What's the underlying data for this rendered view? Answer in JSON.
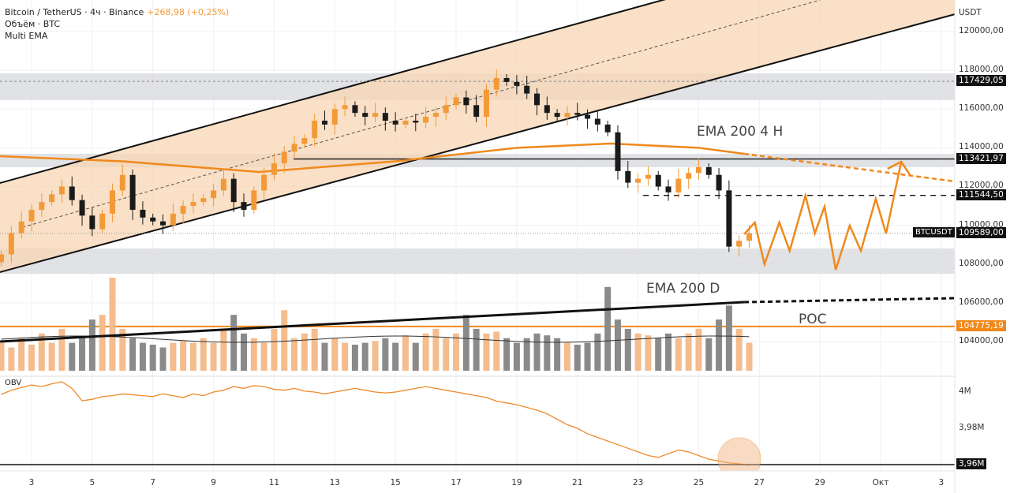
{
  "legend": {
    "symbol": "Bitcoin / TetherUS · 4ч · Binance",
    "change": "+268,98 (+0,25%)",
    "volume": "Объём · BTC",
    "ema": "Multi EMA",
    "obv": "OBV"
  },
  "annotations": {
    "ema4h": "EMA 200 4 H",
    "emaD": "EMA 200 D",
    "poc": "POC"
  },
  "colors": {
    "up": "#f29a38",
    "down": "#1a1a1a",
    "channel": "#f7d5b3",
    "zone": "#dcdde0",
    "poc": "#f0891c"
  },
  "chart_data": {
    "type": "candlestick",
    "price_axis": {
      "unit": "USDT",
      "ticks": [
        "120000,00",
        "118000,00",
        "116000,00",
        "114000,00",
        "112000,00",
        "110000,00",
        "108000,00",
        "106000,00",
        "104000,00"
      ],
      "range": [
        103000,
        121600
      ]
    },
    "time_axis": {
      "ticks": [
        "3",
        "5",
        "7",
        "9",
        "11",
        "13",
        "15",
        "17",
        "19",
        "21",
        "23",
        "25",
        "27",
        "29",
        "Окт",
        "3"
      ]
    },
    "candle_start_day": 2,
    "candles_per_day": 3,
    "closes": [
      108500,
      109600,
      110200,
      110800,
      111200,
      111600,
      112000,
      111300,
      110500,
      109800,
      110600,
      111800,
      112600,
      110800,
      110400,
      110200,
      110000,
      110600,
      111000,
      111200,
      111400,
      111800,
      112400,
      111200,
      110800,
      111800,
      112600,
      113200,
      113800,
      114200,
      114500,
      115400,
      115200,
      116000,
      116200,
      115800,
      115600,
      115800,
      115400,
      115200,
      115400,
      115300,
      115600,
      115800,
      116200,
      116600,
      116200,
      115600,
      117000,
      117600,
      117400,
      117200,
      116800,
      116200,
      115800,
      115600,
      115800,
      115700,
      115500,
      115200,
      114800,
      112800,
      112200,
      112400,
      112600,
      112000,
      111700,
      112400,
      112700,
      113000,
      112600,
      111800,
      108900,
      109200,
      109589
    ],
    "volume": [
      30,
      25,
      35,
      28,
      40,
      30,
      45,
      30,
      35,
      55,
      60,
      100,
      45,
      35,
      30,
      28,
      25,
      30,
      32,
      30,
      35,
      30,
      45,
      60,
      40,
      35,
      30,
      45,
      65,
      35,
      40,
      45,
      30,
      35,
      30,
      28,
      30,
      32,
      35,
      30,
      38,
      30,
      40,
      45,
      35,
      40,
      60,
      45,
      40,
      42,
      35,
      30,
      35,
      40,
      38,
      35,
      30,
      28,
      30,
      40,
      90,
      55,
      45,
      40,
      38,
      35,
      40,
      35,
      40,
      45,
      35,
      55,
      70,
      45,
      30
    ],
    "obv_axis": {
      "ticks": [
        "4M",
        "3,98M"
      ]
    },
    "obv": [
      3.9987,
      4.001,
      4.0025,
      4.0039,
      4.003,
      4.0045,
      4.0057,
      4.002,
      3.9952,
      3.996,
      3.9975,
      3.998,
      3.999,
      3.9985,
      3.998,
      3.9975,
      3.999,
      3.998,
      3.997,
      3.999,
      3.998,
      4.0,
      4.001,
      4.003,
      4.002,
      4.0035,
      4.003,
      4.0015,
      4.001,
      4.002,
      4.0005,
      4.0,
      3.999,
      4.0,
      4.001,
      4.002,
      4.001,
      4.0,
      3.9995,
      4.0,
      4.001,
      4.002,
      4.003,
      4.002,
      4.001,
      4.0,
      3.999,
      3.998,
      3.997,
      3.995,
      3.994,
      3.993,
      3.9915,
      3.99,
      3.988,
      3.985,
      3.982,
      3.98,
      3.977,
      3.975,
      3.973,
      3.971,
      3.969,
      3.967,
      3.965,
      3.964,
      3.966,
      3.968,
      3.967,
      3.965,
      3.963,
      3.962,
      3.961,
      3.9605,
      3.9596
    ],
    "levels": [
      {
        "label": "117429,05",
        "price": 117429.05,
        "style": "dotted"
      },
      {
        "label": "113421,97",
        "price": 113421.97,
        "style": "solid",
        "from_day": 11.64
      },
      {
        "label": "111544,50",
        "price": 111544.5,
        "style": "dashed",
        "from_day": 23.17
      },
      {
        "label": "104775,19",
        "price": 104775.19,
        "style": "poc"
      }
    ],
    "last_price": {
      "ticker": "BTCUSDT",
      "label": "109589,00",
      "price": 109589
    },
    "obv_level": {
      "label": "3,96M",
      "value": 3.96
    },
    "zones": [
      [
        116458,
        117842
      ],
      [
        112997,
        113689
      ],
      [
        107500,
        108803
      ]
    ],
    "channel": {
      "upper": [
        [
          1.96,
          112182
        ],
        [
          23.82,
          121629
        ]
      ],
      "lower": [
        [
          1.96,
          107581
        ],
        [
          33.45,
          120896
        ]
      ],
      "mid": [
        [
          2.7,
          109900
        ],
        [
          29.0,
          121629
        ]
      ]
    },
    "ema_4h": [
      [
        1.96,
        113567
      ],
      [
        6,
        113300
      ],
      [
        10.5,
        112752
      ],
      [
        15,
        113300
      ],
      [
        19,
        114000
      ],
      [
        22.1,
        114218
      ],
      [
        25,
        114000
      ],
      [
        26.5,
        113689
      ]
    ],
    "ema_4h_projection": [
      [
        26.5,
        113689
      ],
      [
        33.45,
        112264
      ]
    ],
    "ema_d": [
      [
        1.96,
        104000
      ],
      [
        26.5,
        106034
      ]
    ],
    "ema_d_projection": [
      [
        26.5,
        106034
      ],
      [
        33.45,
        106238
      ]
    ],
    "projection": [
      [
        26.5,
        109536
      ],
      [
        26.85,
        110147
      ],
      [
        27.17,
        107989
      ],
      [
        27.66,
        110147
      ],
      [
        28.0,
        108681
      ],
      [
        28.52,
        111531
      ],
      [
        28.83,
        109577
      ],
      [
        29.15,
        110961
      ],
      [
        29.52,
        107704
      ],
      [
        29.98,
        109984
      ],
      [
        30.35,
        108681
      ],
      [
        30.84,
        111368
      ],
      [
        31.18,
        109577
      ],
      [
        31.68,
        113282
      ]
    ],
    "projection_arrow": [
      [
        31.23,
        112915
      ],
      [
        31.68,
        113282
      ],
      [
        31.97,
        112590
      ]
    ]
  }
}
